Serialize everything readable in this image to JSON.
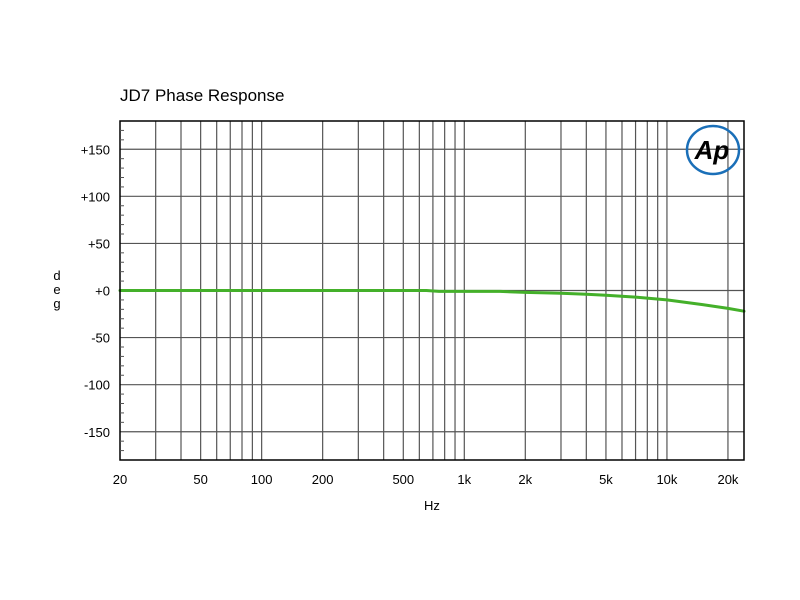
{
  "chart_data": {
    "type": "line",
    "title": "JD7 Phase Response",
    "xlabel": "Hz",
    "ylabel": "deg",
    "x_scale": "log",
    "xlim": [
      20,
      24000
    ],
    "ylim": [
      -180,
      180
    ],
    "grid": true,
    "x_ticks": [
      {
        "value": 20,
        "label": "20"
      },
      {
        "value": 50,
        "label": "50"
      },
      {
        "value": 100,
        "label": "100"
      },
      {
        "value": 200,
        "label": "200"
      },
      {
        "value": 500,
        "label": "500"
      },
      {
        "value": 1000,
        "label": "1k"
      },
      {
        "value": 2000,
        "label": "2k"
      },
      {
        "value": 5000,
        "label": "5k"
      },
      {
        "value": 10000,
        "label": "10k"
      },
      {
        "value": 20000,
        "label": "20k"
      }
    ],
    "y_ticks": [
      {
        "value": 150,
        "label": "+150"
      },
      {
        "value": 100,
        "label": "+100"
      },
      {
        "value": 50,
        "label": "+50"
      },
      {
        "value": 0,
        "label": "+0"
      },
      {
        "value": -50,
        "label": "-50"
      },
      {
        "value": -100,
        "label": "-100"
      },
      {
        "value": -150,
        "label": "-150"
      }
    ],
    "series": [
      {
        "color": "#44b02a",
        "x": [
          20,
          50,
          100,
          200,
          500,
          650,
          750,
          1000,
          1500,
          2000,
          3000,
          4000,
          5000,
          7000,
          10000,
          15000,
          20000,
          24000
        ],
        "y": [
          0,
          0,
          0,
          0,
          0,
          0,
          -1,
          -1,
          -1,
          -2,
          -3,
          -4,
          -5,
          -7,
          -10,
          -15,
          -19,
          -22
        ]
      }
    ]
  },
  "logo": {
    "text": "Ap",
    "color": "#1a6fb8"
  }
}
